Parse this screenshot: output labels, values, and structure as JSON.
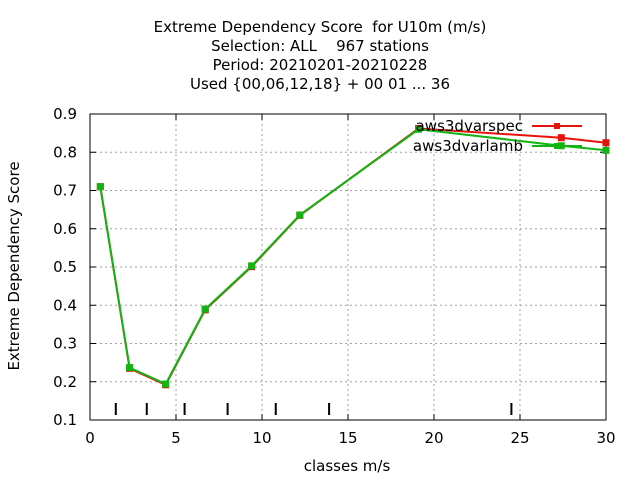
{
  "chart_data": {
    "type": "line",
    "title_lines": [
      "Extreme Dependency Score  for U10m (m/s)",
      "Selection: ALL    967 stations",
      "Period: 20210201-20210228",
      "Used {00,06,12,18} + 00 01 ... 36"
    ],
    "xlabel": "classes m/s",
    "ylabel": "Extreme Dependency Score",
    "xlim": [
      0,
      30
    ],
    "ylim": [
      0.1,
      0.9
    ],
    "xticks": [
      0,
      5,
      10,
      15,
      20,
      25,
      30
    ],
    "yticks": [
      0.1,
      0.2,
      0.3,
      0.4,
      0.5,
      0.6,
      0.7,
      0.8,
      0.9
    ],
    "ytick_labels": [
      "0.1",
      "0.2",
      "0.3",
      "0.4",
      "0.5",
      "0.6",
      "0.7",
      "0.8",
      "0.9"
    ],
    "grid": true,
    "legend_position": "top-right",
    "class_marks": [
      1.5,
      3.3,
      5.5,
      8.0,
      10.8,
      13.9,
      24.5
    ],
    "series": [
      {
        "name": "aws3dvarspec",
        "color": "#e8120d",
        "x": [
          0.6,
          2.3,
          4.4,
          6.7,
          9.4,
          12.2,
          19.1,
          27.4,
          30.0
        ],
        "y": [
          0.71,
          0.235,
          0.192,
          0.388,
          0.501,
          0.635,
          0.862,
          0.838,
          0.825
        ]
      },
      {
        "name": "aws3dvarlamb",
        "color": "#12b412",
        "x": [
          0.6,
          2.3,
          4.4,
          6.7,
          9.4,
          12.2,
          19.1,
          27.4,
          30.0
        ],
        "y": [
          0.71,
          0.237,
          0.194,
          0.39,
          0.503,
          0.636,
          0.86,
          0.817,
          0.805
        ]
      }
    ]
  }
}
